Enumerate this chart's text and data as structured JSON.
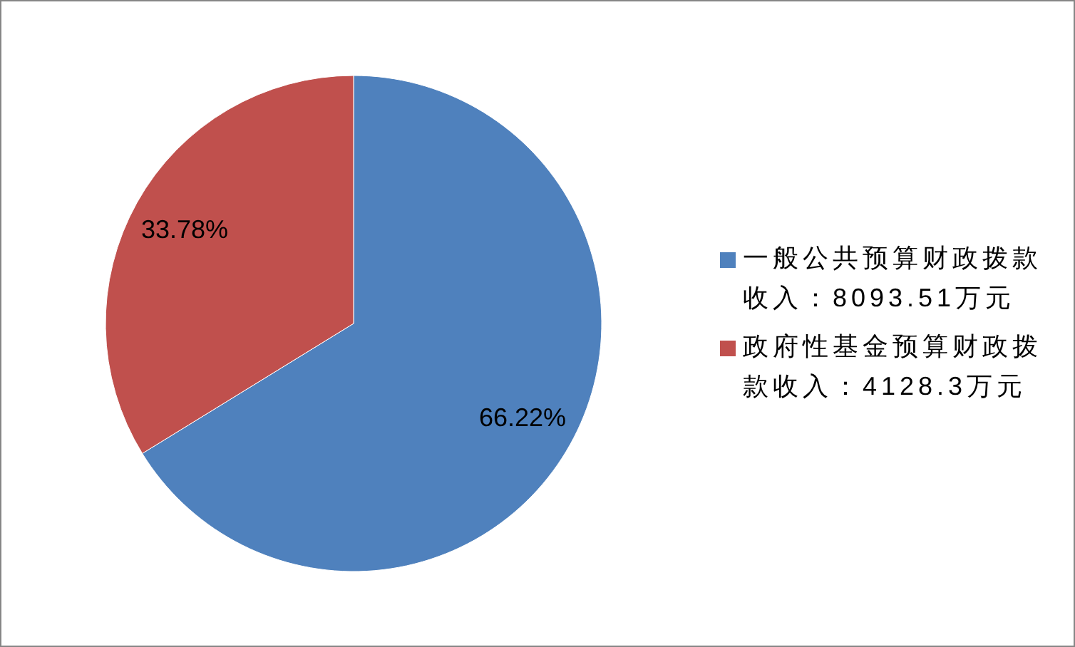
{
  "chart_data": {
    "type": "pie",
    "categories": [
      "一般公共预算财政拨款收入：8093.51万元",
      "政府性基金预算财政拨款收入：4128.3万元"
    ],
    "values": [
      66.22,
      33.78
    ],
    "colors": [
      "#4f81bd",
      "#c0504d"
    ],
    "value_labels": [
      "66.22%",
      "33.78%"
    ],
    "legend": "right"
  }
}
